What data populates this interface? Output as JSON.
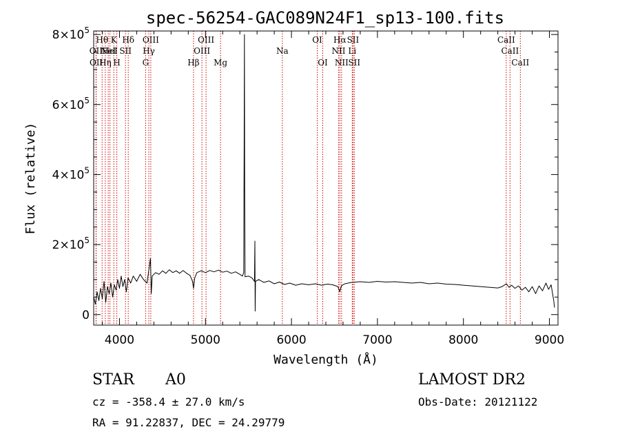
{
  "chart_data": {
    "type": "line",
    "title": "spec-56254-GAC089N24F1_sp13-100.fits",
    "xlabel": "Wavelength (Å)",
    "ylabel": "Flux (relative)",
    "xlim": [
      3700,
      9100
    ],
    "ylim": [
      -30000,
      810000
    ],
    "x_ticks": [
      4000,
      5000,
      6000,
      7000,
      8000,
      9000
    ],
    "x_tick_labels": [
      "4000",
      "5000",
      "6000",
      "7000",
      "8000",
      "9000"
    ],
    "y_ticks": [
      0,
      200000,
      400000,
      600000,
      800000
    ],
    "y_tick_labels": [
      {
        "mant": "0",
        "exp": ""
      },
      {
        "mant": "2×10",
        "exp": "5"
      },
      {
        "mant": "4×10",
        "exp": "5"
      },
      {
        "mant": "6×10",
        "exp": "5"
      },
      {
        "mant": "8×10",
        "exp": "5"
      }
    ],
    "series": [
      {
        "color": "#000000",
        "points": [
          [
            3700,
            50000
          ],
          [
            3720,
            30000
          ],
          [
            3740,
            65000
          ],
          [
            3760,
            40000
          ],
          [
            3780,
            75000
          ],
          [
            3800,
            45000
          ],
          [
            3820,
            95000
          ],
          [
            3840,
            35000
          ],
          [
            3860,
            80000
          ],
          [
            3880,
            60000
          ],
          [
            3900,
            90000
          ],
          [
            3920,
            50000
          ],
          [
            3940,
            85000
          ],
          [
            3960,
            70000
          ],
          [
            3980,
            100000
          ],
          [
            4000,
            75000
          ],
          [
            4020,
            110000
          ],
          [
            4040,
            80000
          ],
          [
            4060,
            100000
          ],
          [
            4080,
            65000
          ],
          [
            4100,
            105000
          ],
          [
            4130,
            90000
          ],
          [
            4160,
            110000
          ],
          [
            4200,
            95000
          ],
          [
            4240,
            115000
          ],
          [
            4280,
            100000
          ],
          [
            4320,
            90000
          ],
          [
            4340,
            125000
          ],
          [
            4360,
            160000
          ],
          [
            4370,
            60000
          ],
          [
            4380,
            110000
          ],
          [
            4420,
            120000
          ],
          [
            4460,
            115000
          ],
          [
            4500,
            125000
          ],
          [
            4540,
            118000
          ],
          [
            4580,
            128000
          ],
          [
            4620,
            120000
          ],
          [
            4660,
            125000
          ],
          [
            4700,
            118000
          ],
          [
            4740,
            126000
          ],
          [
            4780,
            118000
          ],
          [
            4820,
            112000
          ],
          [
            4850,
            95000
          ],
          [
            4861,
            75000
          ],
          [
            4875,
            105000
          ],
          [
            4900,
            120000
          ],
          [
            4950,
            125000
          ],
          [
            5000,
            120000
          ],
          [
            5050,
            126000
          ],
          [
            5100,
            122000
          ],
          [
            5150,
            127000
          ],
          [
            5200,
            121000
          ],
          [
            5250,
            124000
          ],
          [
            5300,
            118000
          ],
          [
            5350,
            122000
          ],
          [
            5400,
            115000
          ],
          [
            5430,
            110000
          ],
          [
            5445,
            120000
          ],
          [
            5450,
            480000
          ],
          [
            5453,
            800000
          ],
          [
            5456,
            340000
          ],
          [
            5460,
            108000
          ],
          [
            5500,
            110000
          ],
          [
            5540,
            105000
          ],
          [
            5570,
            95000
          ],
          [
            5575,
            210000
          ],
          [
            5578,
            10000
          ],
          [
            5582,
            95000
          ],
          [
            5620,
            100000
          ],
          [
            5680,
            92000
          ],
          [
            5740,
            96000
          ],
          [
            5800,
            88000
          ],
          [
            5860,
            93000
          ],
          [
            5920,
            86000
          ],
          [
            5980,
            90000
          ],
          [
            6050,
            84000
          ],
          [
            6120,
            88000
          ],
          [
            6200,
            85000
          ],
          [
            6280,
            88000
          ],
          [
            6350,
            84000
          ],
          [
            6420,
            87000
          ],
          [
            6480,
            85000
          ],
          [
            6540,
            80000
          ],
          [
            6563,
            65000
          ],
          [
            6580,
            82000
          ],
          [
            6620,
            88000
          ],
          [
            6700,
            92000
          ],
          [
            6800,
            94000
          ],
          [
            6900,
            92000
          ],
          [
            7000,
            95000
          ],
          [
            7100,
            93000
          ],
          [
            7200,
            94000
          ],
          [
            7300,
            92000
          ],
          [
            7400,
            90000
          ],
          [
            7500,
            92000
          ],
          [
            7600,
            88000
          ],
          [
            7700,
            90000
          ],
          [
            7800,
            87000
          ],
          [
            7900,
            86000
          ],
          [
            8000,
            84000
          ],
          [
            8100,
            82000
          ],
          [
            8200,
            80000
          ],
          [
            8300,
            78000
          ],
          [
            8400,
            76000
          ],
          [
            8450,
            80000
          ],
          [
            8500,
            88000
          ],
          [
            8530,
            78000
          ],
          [
            8560,
            84000
          ],
          [
            8600,
            75000
          ],
          [
            8640,
            82000
          ],
          [
            8680,
            70000
          ],
          [
            8720,
            78000
          ],
          [
            8760,
            65000
          ],
          [
            8800,
            80000
          ],
          [
            8840,
            60000
          ],
          [
            8880,
            82000
          ],
          [
            8920,
            68000
          ],
          [
            8960,
            90000
          ],
          [
            8990,
            72000
          ],
          [
            9020,
            85000
          ],
          [
            9050,
            40000
          ],
          [
            9060,
            20000
          ]
        ]
      }
    ],
    "line_markers": [
      {
        "wl": 3727,
        "label": "OII",
        "row": 1
      },
      {
        "wl": 3729,
        "label": "OII",
        "row": 2
      },
      {
        "wl": 3798,
        "label": "Hθ",
        "row": 0
      },
      {
        "wl": 3835,
        "label": "Hη",
        "row": 2
      },
      {
        "wl": 3869,
        "label": "NeI",
        "row": 1
      },
      {
        "wl": 3889,
        "label": "HeI",
        "row": 1
      },
      {
        "wl": 3934,
        "label": "K",
        "row": 0
      },
      {
        "wl": 3969,
        "label": "H",
        "row": 2
      },
      {
        "wl": 4070,
        "label": "SII",
        "row": 1
      },
      {
        "wl": 4102,
        "label": "Hδ",
        "row": 0
      },
      {
        "wl": 4304,
        "label": "G",
        "row": 2
      },
      {
        "wl": 4341,
        "label": "Hγ",
        "row": 1
      },
      {
        "wl": 4364,
        "label": "OIII",
        "row": 0
      },
      {
        "wl": 4861,
        "label": "Hβ",
        "row": 2
      },
      {
        "wl": 4959,
        "label": "OIII",
        "row": 1
      },
      {
        "wl": 5007,
        "label": "OIII",
        "row": 0
      },
      {
        "wl": 5175,
        "label": "Mg",
        "row": 2
      },
      {
        "wl": 5894,
        "label": "Na",
        "row": 1
      },
      {
        "wl": 6300,
        "label": "OI",
        "row": 0
      },
      {
        "wl": 6364,
        "label": "OI",
        "row": 2
      },
      {
        "wl": 6548,
        "label": "NII",
        "row": 1
      },
      {
        "wl": 6563,
        "label": "Hα",
        "row": 0
      },
      {
        "wl": 6583,
        "label": "NII",
        "row": 2
      },
      {
        "wl": 6707,
        "label": "Li",
        "row": 1
      },
      {
        "wl": 6716,
        "label": "SII",
        "row": 0
      },
      {
        "wl": 6731,
        "label": "SII",
        "row": 2
      },
      {
        "wl": 8498,
        "label": "CaII",
        "row": 0
      },
      {
        "wl": 8542,
        "label": "CaII",
        "row": 1
      },
      {
        "wl": 8662,
        "label": "CaII",
        "row": 2
      }
    ],
    "marker_color": "#cc0000"
  },
  "info": {
    "object_class": "STAR",
    "subclass": "A0",
    "survey": "LAMOST DR2",
    "cz": "cz = -358.4 ± 27.0 km/s",
    "obs_date": "Obs-Date: 20121122",
    "coords": "RA =  91.22837, DEC =  24.29779"
  }
}
